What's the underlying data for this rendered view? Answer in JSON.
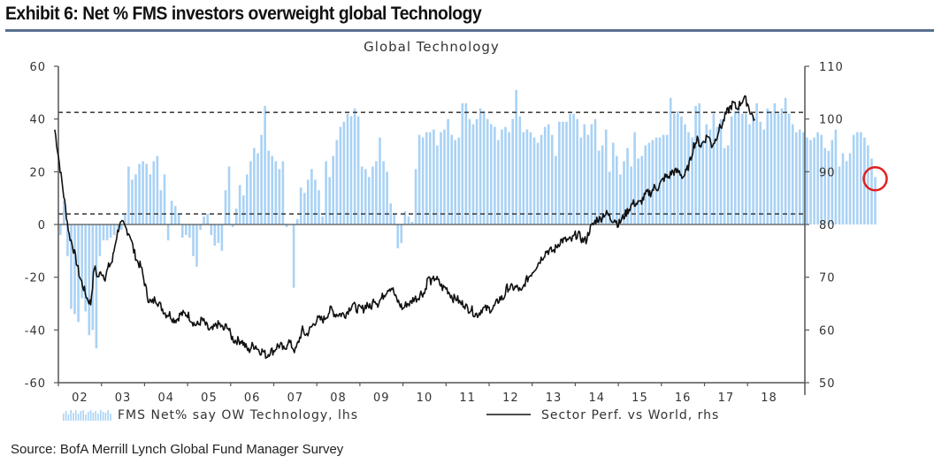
{
  "header": {
    "exhibit_title": "Exhibit 6: Net % FMS investors overweight global Technology"
  },
  "footer": {
    "source": "Source:  BofA Merrill Lynch Global Fund Manager Survey"
  },
  "colors": {
    "bars": "#a9d2f5",
    "line": "#111111",
    "axis": "#555555",
    "dashed": "#444444",
    "highlight_circle": "#e02020",
    "title_rule": "#5a6f8e"
  },
  "chart_data": {
    "type": "bar+line",
    "title": "Global Technology",
    "xlabel": "",
    "x_tick_labels": [
      "02",
      "03",
      "04",
      "05",
      "06",
      "07",
      "08",
      "09",
      "10",
      "11",
      "12",
      "13",
      "14",
      "15",
      "16",
      "17",
      "18"
    ],
    "x_range": [
      "2001-12",
      "2018-11"
    ],
    "y_left": {
      "label": "lhs",
      "ticks": [
        "60",
        "40",
        "20",
        "0",
        "-20",
        "-40",
        "-60"
      ],
      "ylim": [
        -60,
        60
      ]
    },
    "y_right": {
      "label": "rhs",
      "ticks": [
        "110",
        "100",
        "90",
        "80",
        "70",
        "60",
        "50"
      ],
      "ylim": [
        50,
        110
      ]
    },
    "reference_lines_lhs": [
      42.5,
      4
    ],
    "annotation": {
      "type": "circle",
      "target": "latest bar (Jul 2018)",
      "value": 18
    },
    "legend": {
      "placement": "bottom",
      "entries": [
        {
          "name": "FMS Net% say OW Technology, lhs",
          "type": "bar"
        },
        {
          "name": "Sector Perf. vs World, rhs",
          "type": "line"
        }
      ]
    },
    "series": [
      {
        "name": "FMS Net% say OW Technology, lhs",
        "axis": "left",
        "frequency": "monthly",
        "start": "2002-01",
        "values": [
          -4,
          9,
          -12,
          -32,
          -34,
          -37,
          -28,
          -33,
          -42,
          -40,
          -47,
          -12,
          -6,
          -6,
          -5,
          -4,
          -3,
          -2,
          4,
          22,
          17,
          19,
          23,
          24,
          23,
          19,
          24,
          26,
          13,
          19,
          -6,
          9,
          7,
          4,
          -5,
          -4,
          -5,
          -12,
          -16,
          -2,
          3,
          4,
          -4,
          -8,
          -7,
          -10,
          13,
          22,
          -1,
          6,
          15,
          11,
          19,
          24,
          29,
          27,
          34,
          45,
          28,
          26,
          24,
          21,
          24,
          -1,
          0,
          -24,
          2,
          14,
          12,
          17,
          21,
          17,
          13,
          3,
          24,
          18,
          26,
          32,
          37,
          39,
          42,
          41,
          44,
          41,
          22,
          21,
          18,
          22,
          24,
          33,
          24,
          20,
          8,
          4,
          -9,
          -7,
          5,
          3,
          1,
          21,
          34,
          33,
          35,
          35,
          36,
          30,
          35,
          36,
          40,
          34,
          32,
          33,
          46,
          46,
          40,
          38,
          40,
          44,
          43,
          40,
          38,
          37,
          32,
          36,
          37,
          35,
          40,
          51,
          41,
          35,
          36,
          35,
          33,
          31,
          34,
          37,
          38,
          34,
          26,
          39,
          39,
          39,
          42,
          42,
          40,
          33,
          38,
          34,
          38,
          40,
          28,
          30,
          36,
          20,
          31,
          26,
          19,
          24,
          29,
          22,
          35,
          25,
          26,
          30,
          31,
          32,
          33,
          33,
          34,
          34,
          48,
          42,
          43,
          41,
          38,
          35,
          33,
          45,
          46,
          32,
          38,
          36,
          42,
          37,
          40,
          29,
          30,
          41,
          43,
          45,
          42,
          42,
          38,
          41,
          46,
          39,
          36,
          44,
          43,
          46,
          42,
          44,
          48,
          42,
          38,
          35,
          36,
          35,
          33,
          32,
          33,
          35,
          34,
          29,
          28,
          32,
          36,
          22,
          27,
          24,
          27,
          34,
          35,
          35,
          33,
          30,
          25,
          18
        ]
      },
      {
        "name": "Sector Perf. vs World, rhs",
        "axis": "right",
        "frequency": "monthly",
        "start": "2001-12",
        "values": [
          98,
          93,
          88,
          83,
          78,
          76,
          73,
          70,
          68,
          66,
          65,
          72,
          70,
          71,
          70,
          72,
          73,
          77,
          80,
          80,
          79,
          78,
          75,
          73,
          72,
          69,
          66,
          65,
          66,
          65,
          64,
          63,
          63,
          62,
          62,
          63,
          63,
          63,
          62,
          61,
          61,
          62,
          61,
          60,
          60,
          61,
          61,
          60,
          61,
          59,
          58,
          58,
          58,
          57,
          56,
          57,
          57,
          56,
          56,
          55,
          56,
          56,
          57,
          57,
          56,
          58,
          57,
          56,
          58,
          60,
          59,
          60,
          61,
          62,
          62,
          62,
          63,
          64,
          63,
          63,
          63,
          63,
          64,
          65,
          64,
          64,
          64,
          65,
          64,
          66,
          65,
          66,
          67,
          68,
          68,
          66,
          65,
          64,
          65,
          65,
          66,
          66,
          67,
          67,
          70,
          69,
          70,
          69,
          68,
          68,
          67,
          66,
          66,
          65,
          65,
          64,
          64,
          63,
          63,
          64,
          64,
          64,
          64,
          65,
          66,
          66,
          68,
          68,
          68,
          68,
          67,
          69,
          70,
          71,
          72,
          73,
          74,
          75,
          75,
          75,
          76,
          77,
          77,
          77,
          77,
          78,
          78,
          77,
          77,
          79,
          80,
          81,
          81,
          82,
          82,
          81,
          81,
          80,
          81,
          82,
          83,
          84,
          84,
          84,
          85,
          86,
          86,
          87,
          87,
          88,
          89,
          89,
          90,
          90,
          90,
          89,
          90,
          92,
          95,
          96,
          95,
          96,
          97,
          95,
          96,
          98,
          99,
          101,
          102,
          103,
          102,
          103,
          104,
          103,
          101,
          100
        ]
      }
    ]
  }
}
